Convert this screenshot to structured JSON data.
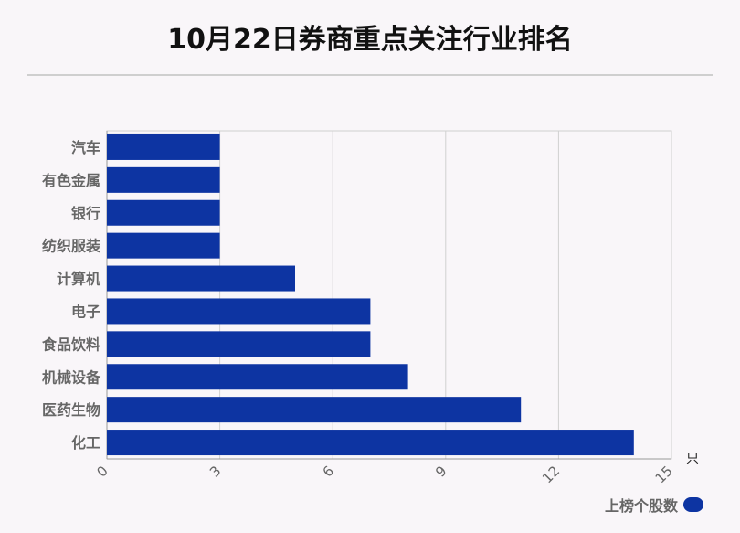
{
  "title": "10月22日券商重点关注行业排名",
  "chart_data": {
    "type": "bar",
    "orientation": "horizontal",
    "categories": [
      "汽车",
      "有色金属",
      "银行",
      "纺织服装",
      "计算机",
      "电子",
      "食品饮料",
      "机械设备",
      "医药生物",
      "化工"
    ],
    "series": [
      {
        "name": "上榜个股数",
        "values": [
          3,
          3,
          3,
          3,
          5,
          7,
          7,
          8,
          11,
          14
        ]
      }
    ],
    "x_ticks": [
      "0",
      "3",
      "6",
      "9",
      "12",
      "15"
    ],
    "xlim": [
      0,
      15
    ],
    "x_unit": "只",
    "grid": true,
    "legend_position": "bottom-right",
    "bar_color": "#0d34a2"
  }
}
